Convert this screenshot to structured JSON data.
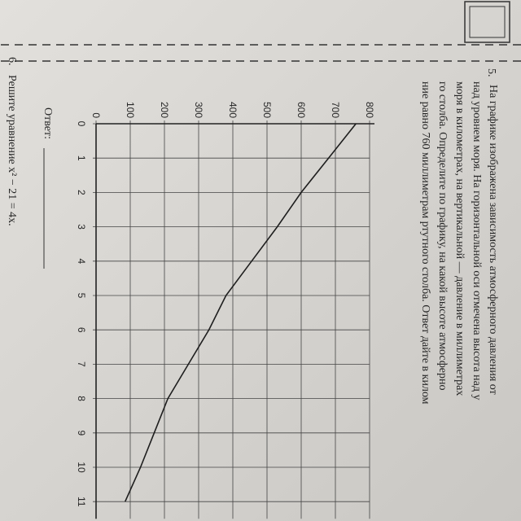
{
  "task5": {
    "number": "5.",
    "lines": [
      "На графике изображена зависимость атмосферного давления от",
      "над уровнем моря. На горизонтальной оси отмечена высота над у",
      "моря в километрах, на вертикальной — давление в миллиметрах",
      "го столба. Определите по графику, на какой высоте атмосферно",
      "ние равно 760 миллиметрам ртутного столба. Ответ дайте в килом"
    ],
    "answer": "Ответ:"
  },
  "task6": {
    "number": "6.",
    "text": "Решите уравнение x² − 21 = 4x."
  },
  "chart_data": {
    "type": "line",
    "color": "#1e1e1e",
    "x": [
      0,
      1,
      2,
      3,
      4,
      5,
      6,
      7,
      8,
      9,
      10,
      11
    ],
    "values": [
      760,
      680,
      600,
      530,
      455,
      380,
      330,
      270,
      210,
      170,
      130,
      85
    ],
    "xlim": [
      0,
      11.5
    ],
    "ylim": [
      0,
      800
    ],
    "xticks": [
      0,
      1,
      2,
      3,
      4,
      5,
      6,
      7,
      8,
      9,
      10,
      11
    ],
    "yticks": [
      0,
      100,
      200,
      300,
      400,
      500,
      600,
      700,
      800
    ],
    "grid": true
  }
}
